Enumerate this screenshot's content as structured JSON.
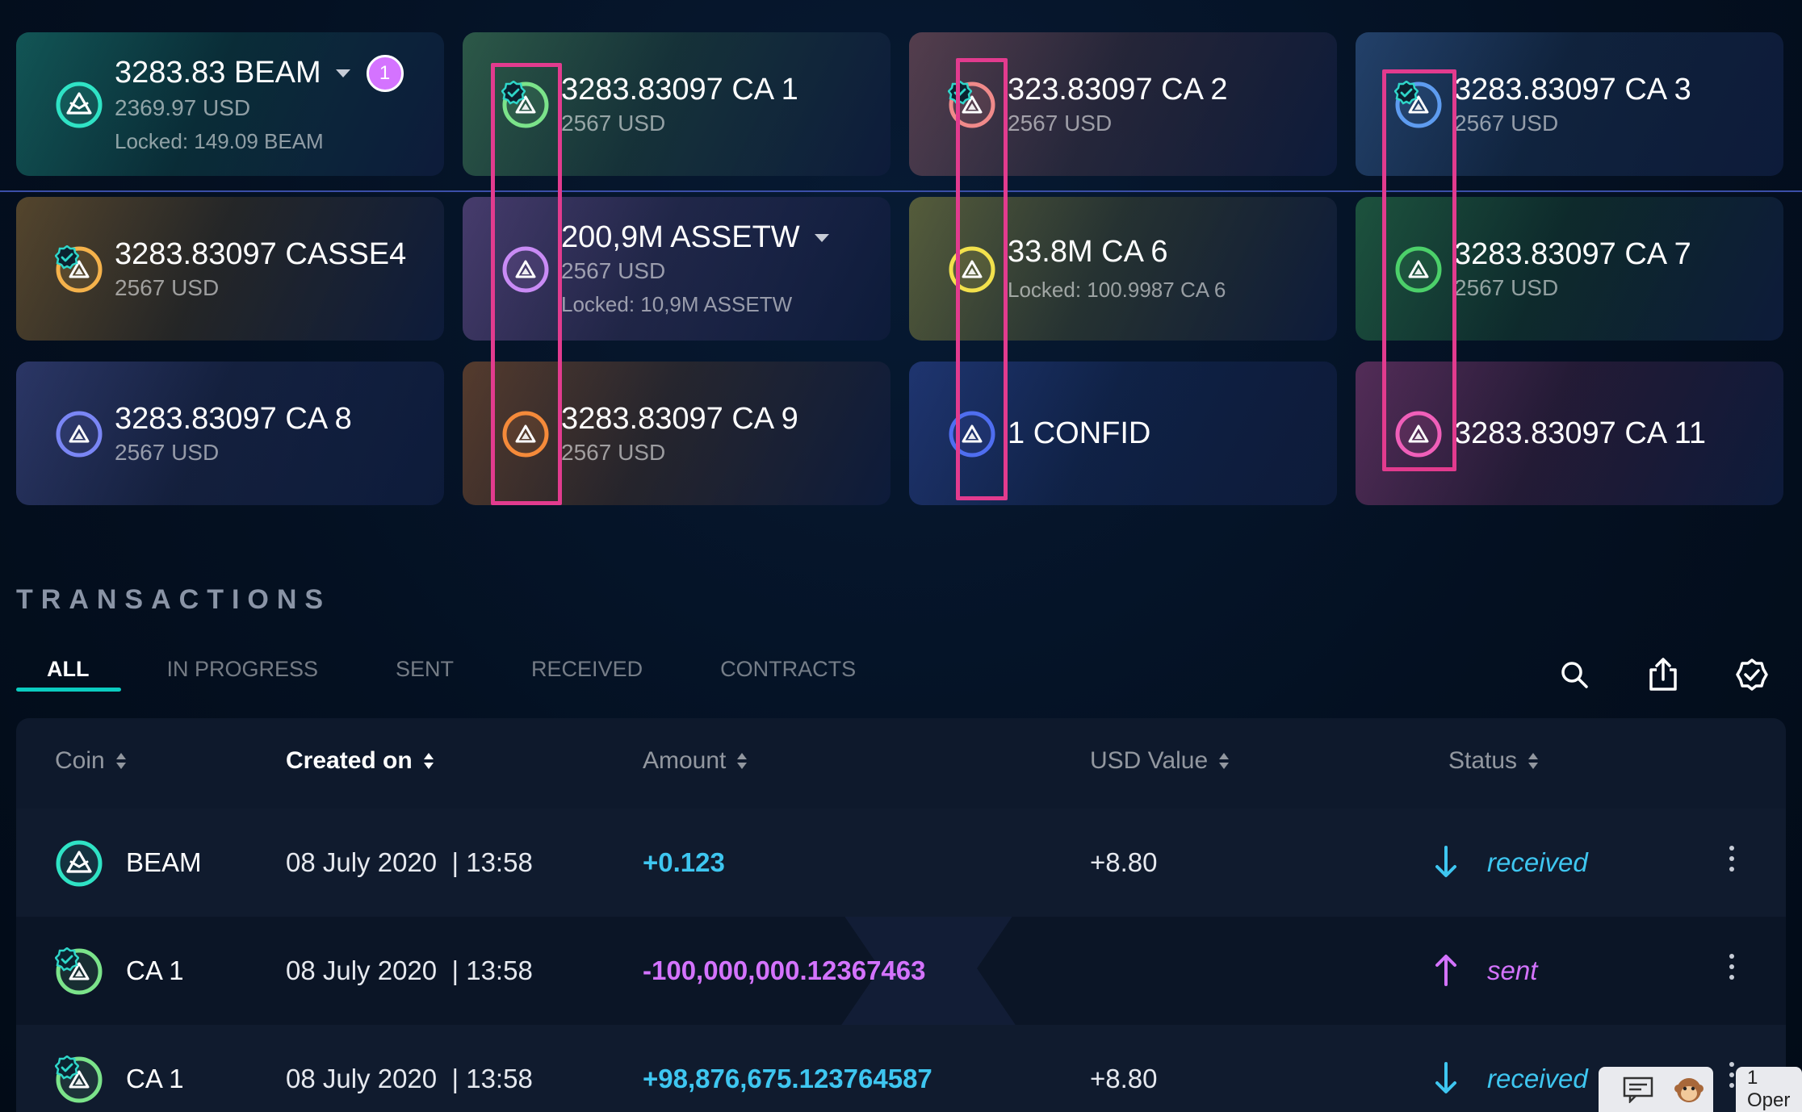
{
  "colors": {
    "accent_teal": "#0bccc0",
    "received": "#3ec6f0",
    "sent": "#d473ff",
    "highlight_box": "#e23b8e"
  },
  "cards": [
    {
      "amount": "3283.83 BEAM",
      "usd": "2369.97 USD",
      "locked": "Locked: 149.09 BEAM",
      "badge": "1",
      "has_caret": true,
      "coin_color": "#2fe3c5",
      "verified": false,
      "icon": "beam-coin-icon"
    },
    {
      "amount": "3283.83097 CA 1",
      "usd": "2567 USD",
      "coin_color": "#7be38a",
      "verified": true,
      "icon": "asset-coin-icon"
    },
    {
      "amount": "323.83097 CA 2",
      "usd": "2567 USD",
      "coin_color": "#f08a8a",
      "verified": true,
      "icon": "asset-coin-icon"
    },
    {
      "amount": "3283.83097 CA 3",
      "usd": "2567 USD",
      "coin_color": "#5e9cf0",
      "verified": true,
      "icon": "asset-coin-icon"
    },
    {
      "amount": "3283.83097 CASSE4",
      "usd": "2567 USD",
      "coin_color": "#f5b24b",
      "verified": true,
      "icon": "asset-coin-icon"
    },
    {
      "amount": "200,9M ASSETW",
      "usd": "2567 USD",
      "locked": "Locked: 10,9M ASSETW",
      "has_caret": true,
      "coin_color": "#c98bf5",
      "verified": false,
      "icon": "asset-coin-icon"
    },
    {
      "amount": "33.8M CA 6",
      "locked": "Locked: 100.9987 CA 6",
      "coin_color": "#f2e14c",
      "verified": false,
      "icon": "asset-coin-icon"
    },
    {
      "amount": "3283.83097 CA 7",
      "usd": "2567 USD",
      "coin_color": "#4cd06a",
      "verified": false,
      "icon": "asset-coin-icon"
    },
    {
      "amount": "3283.83097 CA 8",
      "usd": "2567 USD",
      "coin_color": "#7a86f5",
      "verified": false,
      "icon": "asset-coin-icon"
    },
    {
      "amount": "3283.83097 CA 9",
      "usd": "2567 USD",
      "coin_color": "#f58a3a",
      "verified": false,
      "icon": "asset-coin-icon"
    },
    {
      "amount": "1 CONFID",
      "coin_color": "#4f6ef0",
      "verified": false,
      "icon": "asset-coin-icon"
    },
    {
      "amount": "3283.83097 CA 11",
      "coin_color": "#f05fb9",
      "verified": false,
      "icon": "asset-coin-icon"
    }
  ],
  "transactions": {
    "title": "TRANSACTIONS",
    "tabs": [
      "ALL",
      "IN PROGRESS",
      "SENT",
      "RECEIVED",
      "CONTRACTS"
    ],
    "active_tab": "ALL",
    "tools": [
      "search-icon",
      "export-icon",
      "verified-filter-icon"
    ],
    "columns": [
      "Coin",
      "Created on",
      "Amount",
      "USD Value",
      "Status"
    ],
    "sorted_column": "Created on",
    "rows": [
      {
        "coin": "BEAM",
        "created": "08 July 2020  | 13:58",
        "amount": "+0.123",
        "usd": "+8.80",
        "status": "received",
        "direction": "in",
        "coin_color": "#2fe3c5"
      },
      {
        "coin": "CA 1",
        "created": "08 July 2020  | 13:58",
        "amount": "-100,000,000.12367463",
        "usd": "",
        "status": "sent",
        "direction": "out",
        "coin_color": "#7be38a"
      },
      {
        "coin": "CA 1",
        "created": "08 July 2020  | 13:58",
        "amount": "+98,876,675.123764587",
        "usd": "+8.80",
        "status": "received",
        "direction": "in",
        "coin_color": "#7be38a"
      }
    ]
  },
  "bottom_bar": {
    "open_label": "1 Oper"
  }
}
